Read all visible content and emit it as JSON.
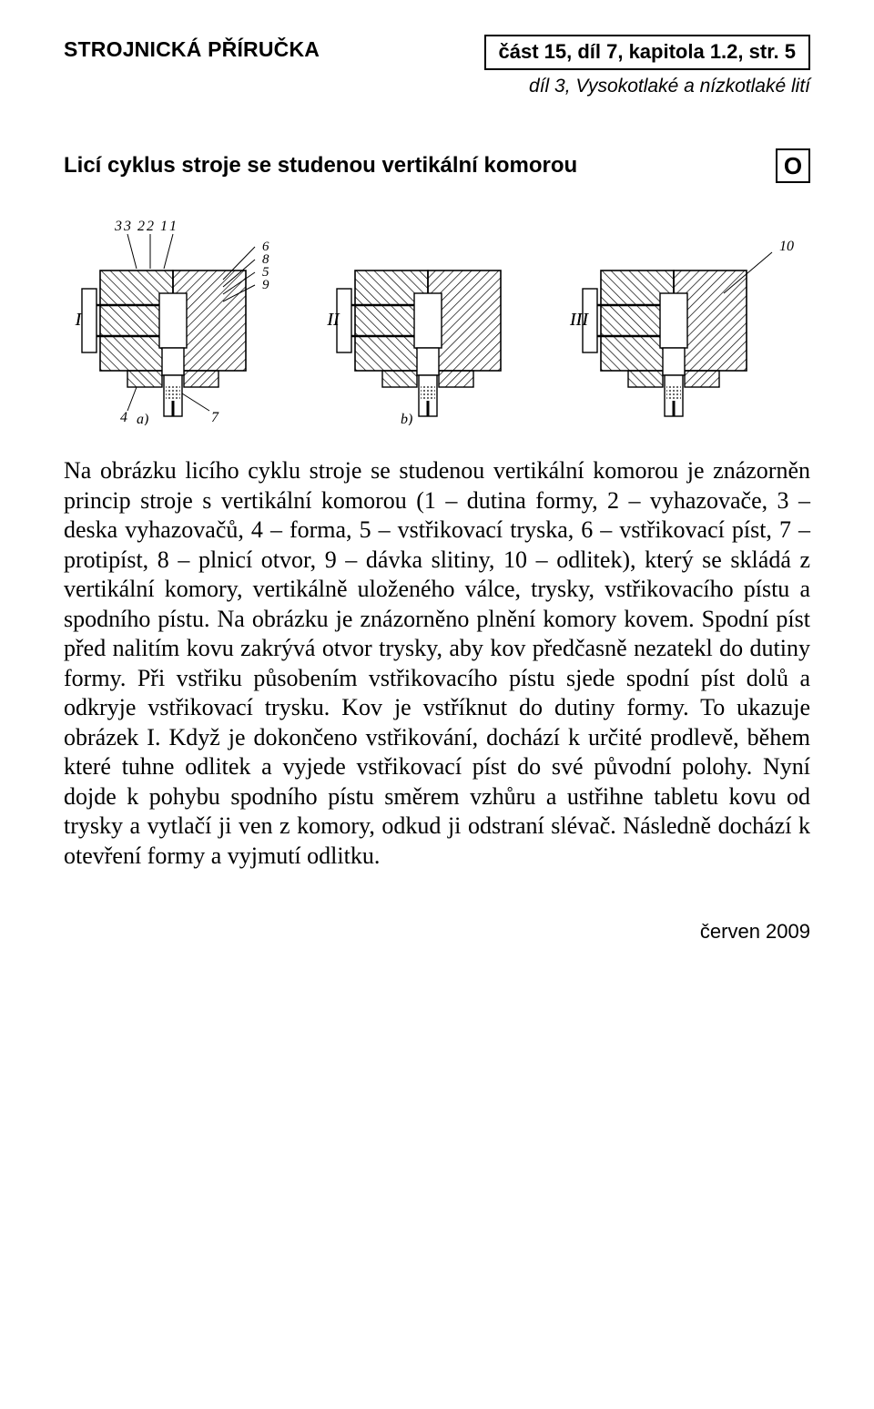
{
  "header": {
    "left": "STROJNICKÁ PŘÍRUČKA",
    "right": "část 15, díl 7, kapitola 1.2, str. 5",
    "sub": "díl 3, Vysokotlaké a nízkotlaké lití"
  },
  "section": {
    "title": "Licí cyklus stroje se studenou vertikální komorou",
    "marker": "O"
  },
  "figure": {
    "type": "diagram",
    "panels": [
      "I",
      "II",
      "III"
    ],
    "sub_labels": [
      "a)",
      "b)"
    ],
    "callouts_left": [
      "1",
      "2",
      "3",
      "4",
      "5",
      "6",
      "7",
      "8",
      "9"
    ],
    "callouts_right": [
      "10"
    ],
    "stroke": "#000000",
    "fill": "#ffffff",
    "hatch": "#000000",
    "font_family": "Times New Roman",
    "label_fontsize": 18
  },
  "body": "Na obrázku licího cyklu stroje se studenou vertikální komorou je znázorněn princip stroje s vertikální komorou (1 – dutina formy, 2 – vyhazovače, 3 – deska vyhazovačů, 4 – forma, 5 – vstřikovací tryska, 6 – vstřikovací píst, 7 – protipíst, 8 – plnicí otvor, 9 – dávka slitiny, 10 – odlitek), který se skládá z vertikální komory, vertikálně uloženého válce, trysky, vstřikovacího pístu a spodního pístu. Na obrázku je znázorněno plnění komory kovem. Spodní píst před nalitím kovu zakrývá otvor trysky, aby kov předčasně nezatekl do dutiny formy. Při vstřiku působením vstřikovacího pístu sjede spodní píst dolů a odkryje vstřikovací trysku. Kov je vstříknut do dutiny formy. To ukazuje obrázek I. Když je dokončeno vstřikování, dochází k určité prodlevě, během které tuhne odlitek a vyjede vstřikovací píst do své původní polohy. Nyní dojde k pohybu spodního pístu směrem vzhůru a ustřihne tabletu kovu od trysky a vytlačí ji ven z komory, odkud ji odstraní slévač. Následně dochází k otevření formy a vyjmutí odlitku.",
  "footer": "červen 2009"
}
